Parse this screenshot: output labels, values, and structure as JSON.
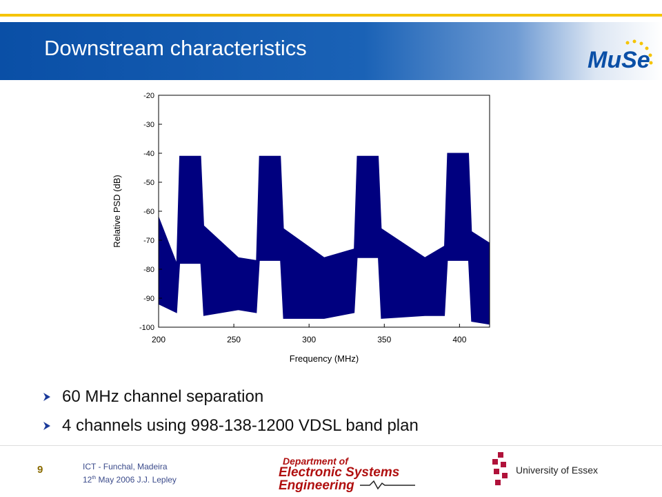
{
  "slide": {
    "title": "Downstream characteristics",
    "logo_text": "MuSe"
  },
  "bullets": [
    "60 MHz channel separation",
    "4 channels using 998-138-1200 VDSL band plan"
  ],
  "footer": {
    "page_number": "9",
    "line1": "ICT - Funchal, Madeira",
    "line2_prefix": "12",
    "line2_sup": "th",
    "line2_rest": " May 2006 J.J. Lepley",
    "dept_line1": "Department of",
    "dept_line2": "Electronic Systems",
    "dept_line3": "Engineering",
    "university": "University of Essex"
  },
  "colors": {
    "banner": "#0a4fa6",
    "accent_yellow": "#f5c400",
    "series": "#00007f",
    "dept_red": "#b01010"
  },
  "chart_data": {
    "type": "area",
    "xlabel": "Frequency (MHz)",
    "ylabel": "Relative PSD (dB)",
    "xlim": [
      200,
      420
    ],
    "ylim": [
      -100,
      -20
    ],
    "xticks": [
      200,
      250,
      300,
      350,
      400
    ],
    "yticks": [
      -20,
      -30,
      -40,
      -50,
      -60,
      -70,
      -80,
      -90,
      -100
    ],
    "grid": false,
    "series": [
      {
        "x": [
          200,
          212,
          214,
          228,
          230,
          253,
          265,
          267,
          281,
          283,
          310,
          330,
          332,
          346,
          348,
          377,
          390,
          392,
          406,
          408,
          420
        ],
        "top": [
          -62,
          -78,
          -41,
          -41,
          -65,
          -76,
          -77,
          -41,
          -41,
          -66,
          -76,
          -73,
          -41,
          -41,
          -66,
          -76,
          -72,
          -40,
          -40,
          -67,
          -71
        ],
        "bottom": [
          -92,
          -95,
          -78,
          -78,
          -96,
          -94,
          -95,
          -77,
          -77,
          -97,
          -97,
          -95,
          -76,
          -76,
          -97,
          -96,
          -96,
          -77,
          -77,
          -98,
          -99
        ]
      }
    ]
  }
}
